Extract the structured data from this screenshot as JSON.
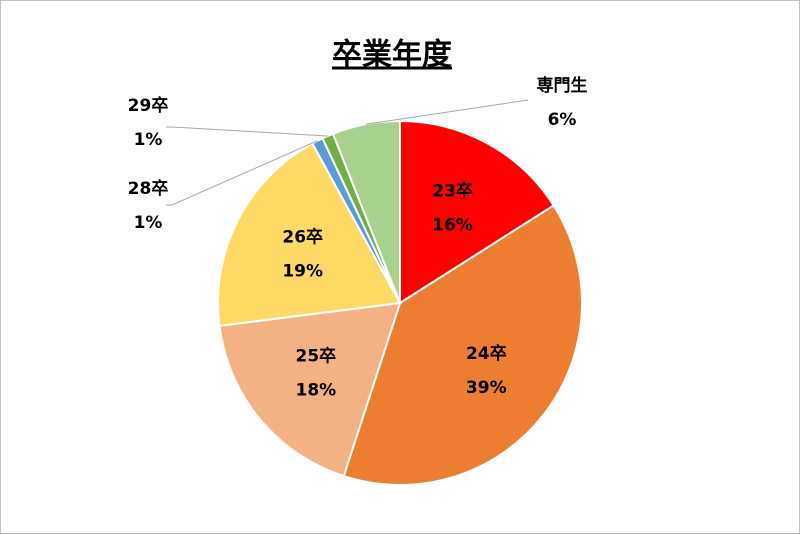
{
  "chart_data": {
    "type": "pie",
    "title": "卒業年度",
    "categories": [
      "23卒",
      "24卒",
      "25卒",
      "26卒",
      "28卒",
      "29卒",
      "専門生"
    ],
    "values": [
      16,
      39,
      18,
      19,
      1,
      1,
      6
    ],
    "value_labels": [
      "16%",
      "39%",
      "18%",
      "19%",
      "1%",
      "1%",
      "6%"
    ],
    "colors": [
      "#ff0000",
      "#ed7d31",
      "#f4b183",
      "#ffd966",
      "#5b9bd5",
      "#70ad47",
      "#a9d18e"
    ]
  }
}
